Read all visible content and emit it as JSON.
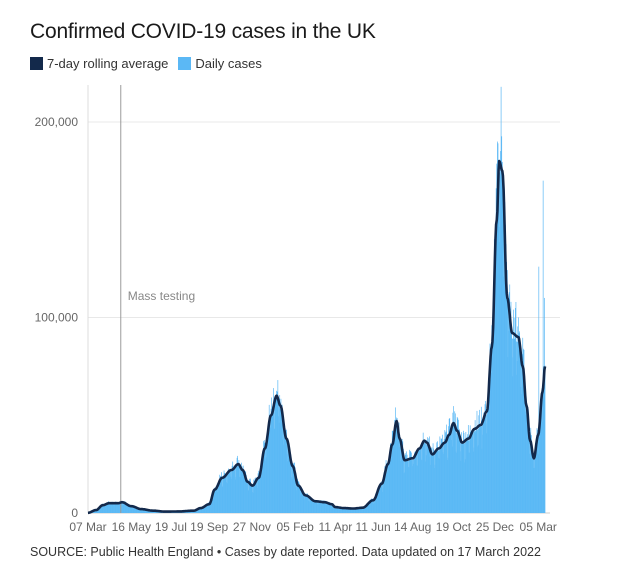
{
  "header": {
    "title": "Confirmed COVID-19 cases in the UK"
  },
  "legend": {
    "items": [
      {
        "label": "7-day rolling average",
        "color": "#13294b"
      },
      {
        "label": "Daily cases",
        "color": "#5bb8f5"
      }
    ]
  },
  "footer": {
    "source": "SOURCE: Public Health England • Cases by date reported. Data updated on 17 March 2022"
  },
  "chart_data": {
    "type": "area",
    "title": "Confirmed COVID-19 cases in the UK",
    "xlabel": "",
    "ylabel": "",
    "ylim": [
      0,
      200000
    ],
    "y_ticks": [
      {
        "value": 0,
        "label": "0"
      },
      {
        "value": 100000,
        "label": "100,000"
      },
      {
        "value": 200000,
        "label": "200,000"
      }
    ],
    "x_range": [
      "2020-03-07",
      "2022-03-16"
    ],
    "x_ticks": [
      {
        "date": "2020-03-07",
        "label": "07 Mar"
      },
      {
        "date": "2020-05-16",
        "label": "16 May"
      },
      {
        "date": "2020-07-19",
        "label": "19 Jul"
      },
      {
        "date": "2020-09-19",
        "label": "19 Sep"
      },
      {
        "date": "2020-11-27",
        "label": "27 Nov"
      },
      {
        "date": "2021-02-05",
        "label": "05 Feb"
      },
      {
        "date": "2021-04-11",
        "label": "11 Apr"
      },
      {
        "date": "2021-06-11",
        "label": "11 Jun"
      },
      {
        "date": "2021-08-14",
        "label": "14 Aug"
      },
      {
        "date": "2021-10-19",
        "label": "19 Oct"
      },
      {
        "date": "2021-12-25",
        "label": "25 Dec"
      },
      {
        "date": "2022-03-05",
        "label": "05 Mar"
      }
    ],
    "annotations": [
      {
        "date": "2020-04-29",
        "label": "Mass testing"
      }
    ],
    "grid": true,
    "legend_position": "top-left",
    "series": [
      {
        "name": "7-day rolling average",
        "color": "#13294b",
        "type": "line",
        "points": [
          [
            "2020-03-07",
            100
          ],
          [
            "2020-03-20",
            1500
          ],
          [
            "2020-03-31",
            4000
          ],
          [
            "2020-04-10",
            5000
          ],
          [
            "2020-04-25",
            5000
          ],
          [
            "2020-05-01",
            5500
          ],
          [
            "2020-05-16",
            3500
          ],
          [
            "2020-06-01",
            2000
          ],
          [
            "2020-06-20",
            1200
          ],
          [
            "2020-07-10",
            700
          ],
          [
            "2020-08-01",
            800
          ],
          [
            "2020-08-25",
            1200
          ],
          [
            "2020-09-05",
            2500
          ],
          [
            "2020-09-19",
            4500
          ],
          [
            "2020-09-28",
            12000
          ],
          [
            "2020-10-10",
            18000
          ],
          [
            "2020-10-25",
            22000
          ],
          [
            "2020-11-05",
            25000
          ],
          [
            "2020-11-12",
            22000
          ],
          [
            "2020-11-20",
            16000
          ],
          [
            "2020-11-28",
            14000
          ],
          [
            "2020-12-08",
            18000
          ],
          [
            "2020-12-18",
            33000
          ],
          [
            "2020-12-28",
            50000
          ],
          [
            "2021-01-06",
            60000
          ],
          [
            "2021-01-12",
            55000
          ],
          [
            "2021-01-22",
            38000
          ],
          [
            "2021-02-01",
            24000
          ],
          [
            "2021-02-10",
            14000
          ],
          [
            "2021-02-22",
            9000
          ],
          [
            "2021-03-10",
            6000
          ],
          [
            "2021-03-25",
            5500
          ],
          [
            "2021-04-05",
            4500
          ],
          [
            "2021-04-11",
            3000
          ],
          [
            "2021-04-25",
            2500
          ],
          [
            "2021-05-10",
            2300
          ],
          [
            "2021-05-25",
            2700
          ],
          [
            "2021-06-11",
            6500
          ],
          [
            "2021-06-25",
            15000
          ],
          [
            "2021-07-05",
            25000
          ],
          [
            "2021-07-12",
            35000
          ],
          [
            "2021-07-19",
            47000
          ],
          [
            "2021-07-24",
            38000
          ],
          [
            "2021-08-01",
            27000
          ],
          [
            "2021-08-14",
            28000
          ],
          [
            "2021-08-25",
            33000
          ],
          [
            "2021-09-02",
            37000
          ],
          [
            "2021-09-06",
            36000
          ],
          [
            "2021-09-15",
            30000
          ],
          [
            "2021-09-25",
            33000
          ],
          [
            "2021-10-05",
            36000
          ],
          [
            "2021-10-12",
            40000
          ],
          [
            "2021-10-19",
            46000
          ],
          [
            "2021-10-25",
            42000
          ],
          [
            "2021-11-02",
            36000
          ],
          [
            "2021-11-12",
            38000
          ],
          [
            "2021-11-22",
            43000
          ],
          [
            "2021-12-02",
            45000
          ],
          [
            "2021-12-12",
            52000
          ],
          [
            "2021-12-20",
            85000
          ],
          [
            "2021-12-28",
            150000
          ],
          [
            "2022-01-01",
            180000
          ],
          [
            "2022-01-06",
            175000
          ],
          [
            "2022-01-14",
            110000
          ],
          [
            "2022-01-22",
            92000
          ],
          [
            "2022-02-01",
            90000
          ],
          [
            "2022-02-08",
            75000
          ],
          [
            "2022-02-14",
            55000
          ],
          [
            "2022-02-20",
            37000
          ],
          [
            "2022-02-26",
            28000
          ],
          [
            "2022-03-05",
            40000
          ],
          [
            "2022-03-12",
            62000
          ],
          [
            "2022-03-16",
            75000
          ]
        ]
      },
      {
        "name": "Daily cases",
        "color": "#5bb8f5",
        "type": "bar",
        "spikes": [
          [
            "2022-01-04",
            218000
          ],
          [
            "2021-12-29",
            190000
          ],
          [
            "2021-12-26",
            122000
          ],
          [
            "2022-03-13",
            170000
          ],
          [
            "2022-03-06",
            126000
          ],
          [
            "2022-03-15",
            110000
          ],
          [
            "2021-01-08",
            68000
          ],
          [
            "2021-07-17",
            54000
          ],
          [
            "2021-10-21",
            52000
          ],
          [
            "2022-01-20",
            108000
          ],
          [
            "2022-02-02",
            92000
          ]
        ]
      }
    ]
  }
}
